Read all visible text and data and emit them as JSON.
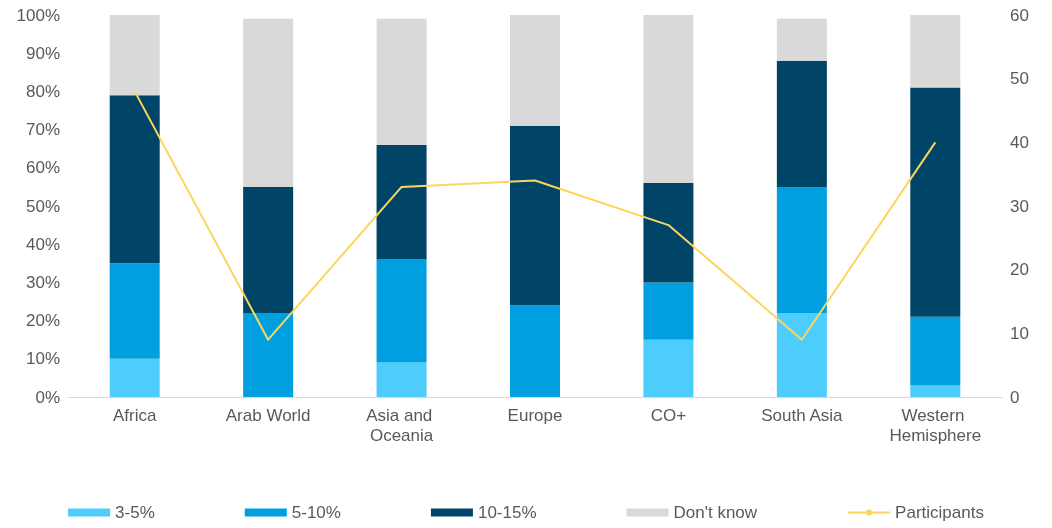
{
  "chart_data": {
    "type": "bar",
    "stacked": true,
    "categories": [
      "Africa",
      "Arab World",
      "Asia and Oceania",
      "Europe",
      "CO+",
      "South Asia",
      "Western Hemisphere"
    ],
    "series": [
      {
        "name": "3-5%",
        "color": "#4dcdfb",
        "values": [
          10,
          0,
          9,
          0,
          15,
          22,
          3
        ]
      },
      {
        "name": "5-10%",
        "color": "#009fdf",
        "values": [
          25,
          22,
          27,
          24,
          15,
          33,
          18
        ]
      },
      {
        "name": "10-15%",
        "color": "#004468",
        "values": [
          44,
          33,
          30,
          47,
          26,
          33,
          60
        ]
      },
      {
        "name": "Don't know",
        "color": "#d9d9d9",
        "values": [
          21,
          44,
          33,
          29,
          44,
          11,
          19
        ]
      },
      {
        "name": "Participants",
        "type": "line",
        "axis": "y2",
        "color": "#fbd65c",
        "marker": "none",
        "values": [
          48,
          9,
          33,
          34,
          27,
          9,
          40
        ]
      }
    ],
    "ylim": [
      0,
      100
    ],
    "yticks": [
      {
        "value": 0,
        "label": "0%"
      },
      {
        "value": 10,
        "label": "10%"
      },
      {
        "value": 20,
        "label": "20%"
      },
      {
        "value": 30,
        "label": "30%"
      },
      {
        "value": 40,
        "label": "40%"
      },
      {
        "value": 50,
        "label": "50%"
      },
      {
        "value": 60,
        "label": "60%"
      },
      {
        "value": 70,
        "label": "70%"
      },
      {
        "value": 80,
        "label": "80%"
      },
      {
        "value": 90,
        "label": "90%"
      },
      {
        "value": 100,
        "label": "100%"
      }
    ],
    "y2lim": [
      0,
      60
    ],
    "y2ticks": [
      0,
      10,
      20,
      30,
      40,
      50,
      60
    ],
    "grid": false,
    "legend": "bottom"
  }
}
